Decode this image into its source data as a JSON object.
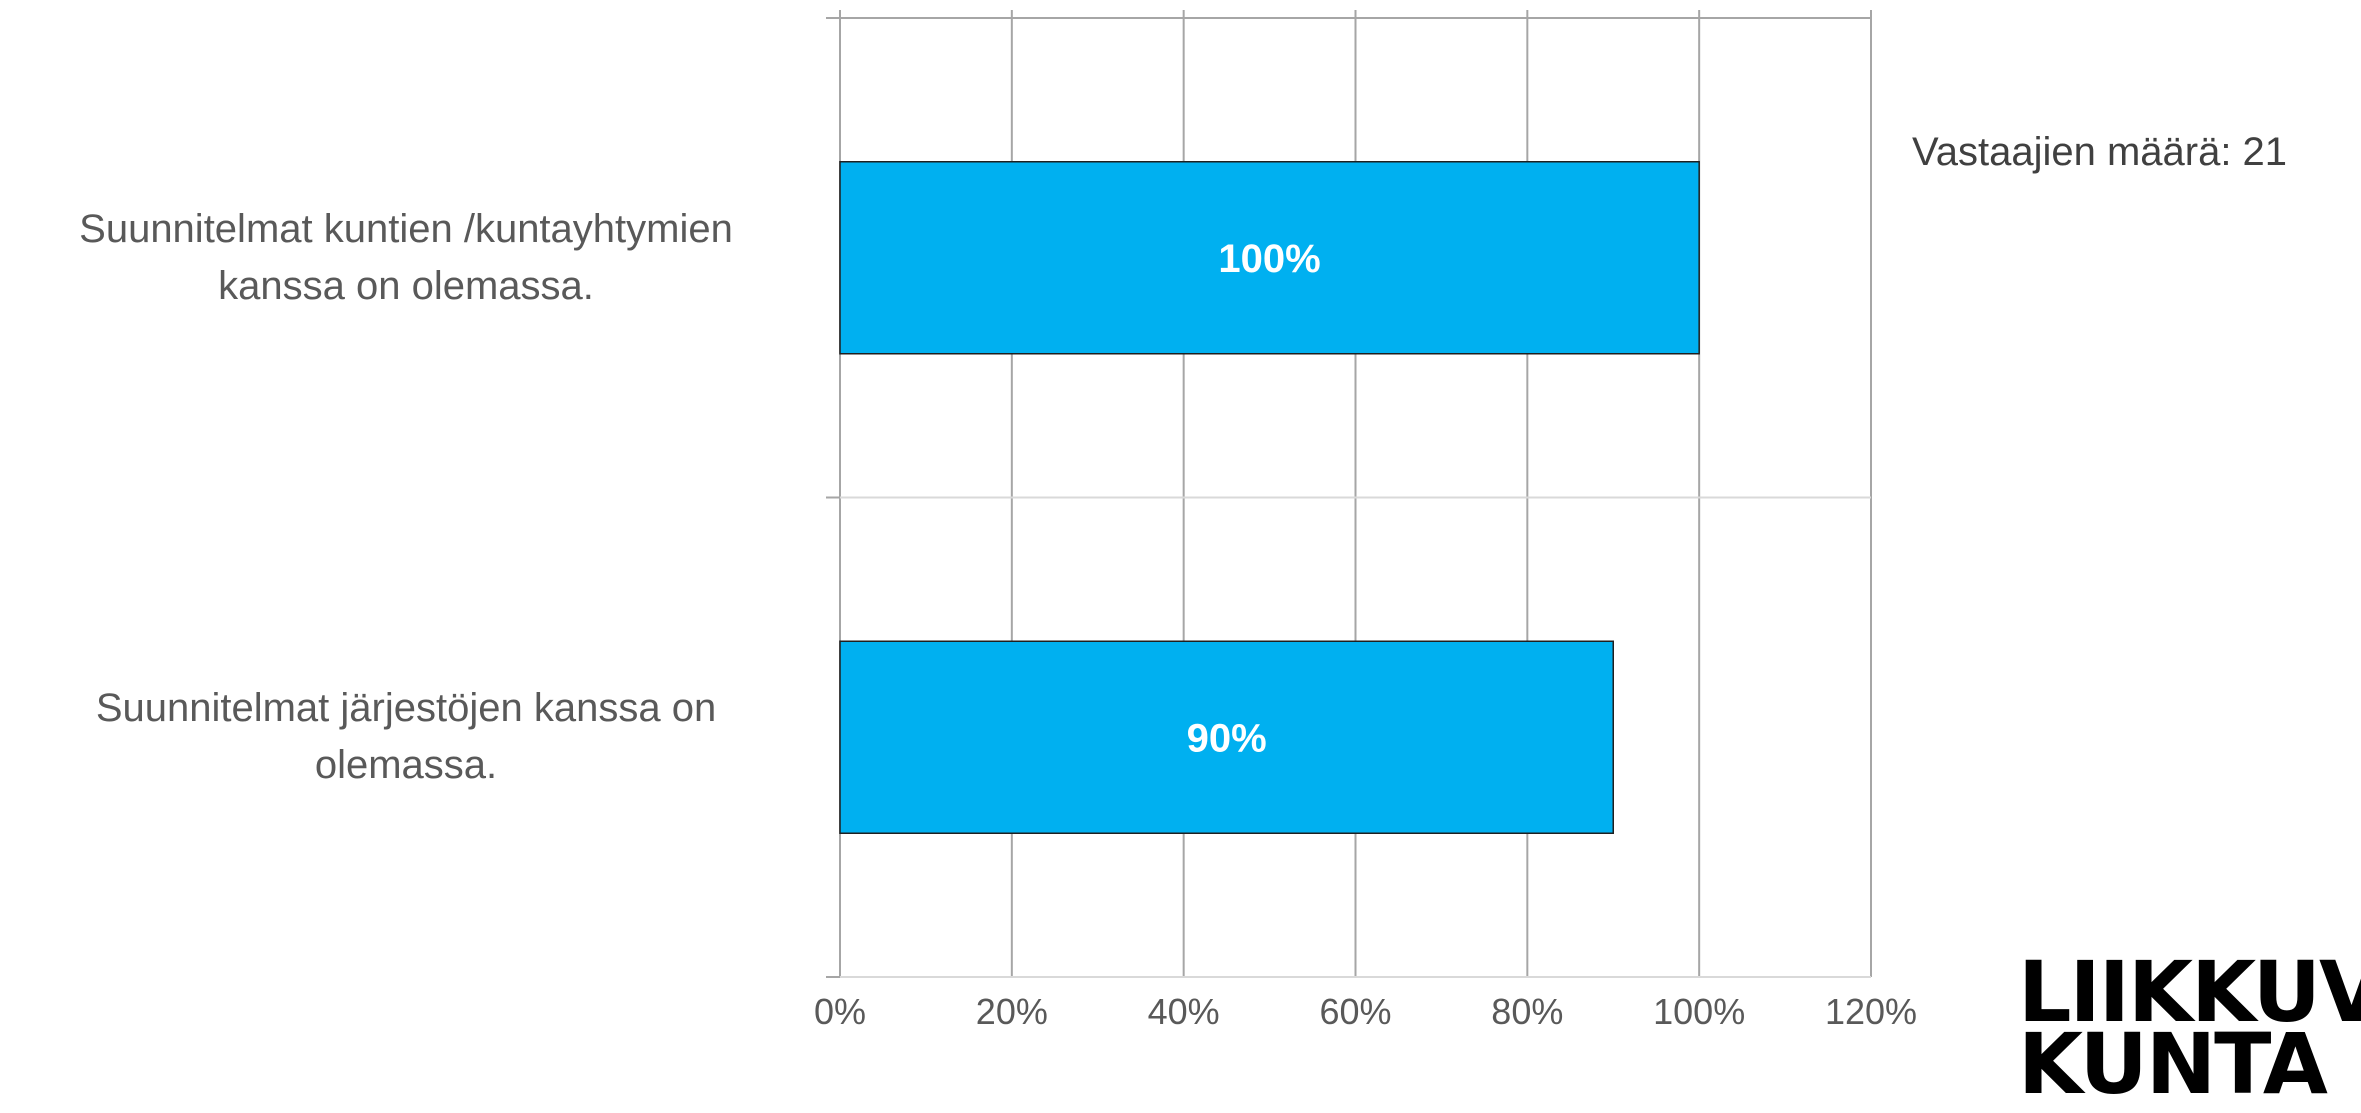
{
  "respondents_label": "Vastaajien määrä: 21",
  "logo_text": "LIIKKUVA KUNTA",
  "colors": {
    "bar": "#00B0F0",
    "bar_label": "#ffffff",
    "grid": "#a6a6a6",
    "tick_label": "#595959"
  },
  "chart_data": {
    "type": "bar",
    "orientation": "horizontal",
    "categories": [
      "Suunnitelmat kuntien /kuntayhtymien kanssa on olemassa.",
      "Suunnitelmat järjestöjen kanssa on olemassa."
    ],
    "category_lines": [
      [
        "Suunnitelmat kuntien /kuntayhtymien",
        "kanssa on olemassa."
      ],
      [
        "Suunnitelmat järjestöjen kanssa on",
        "olemassa."
      ]
    ],
    "values": [
      100,
      90
    ],
    "data_labels": [
      "100%",
      "90%"
    ],
    "xlim": [
      0,
      120
    ],
    "xticks": [
      0,
      20,
      40,
      60,
      80,
      100,
      120
    ],
    "xtick_labels": [
      "0%",
      "20%",
      "40%",
      "60%",
      "80%",
      "100%",
      "120%"
    ],
    "grid": true,
    "legend": "none"
  }
}
